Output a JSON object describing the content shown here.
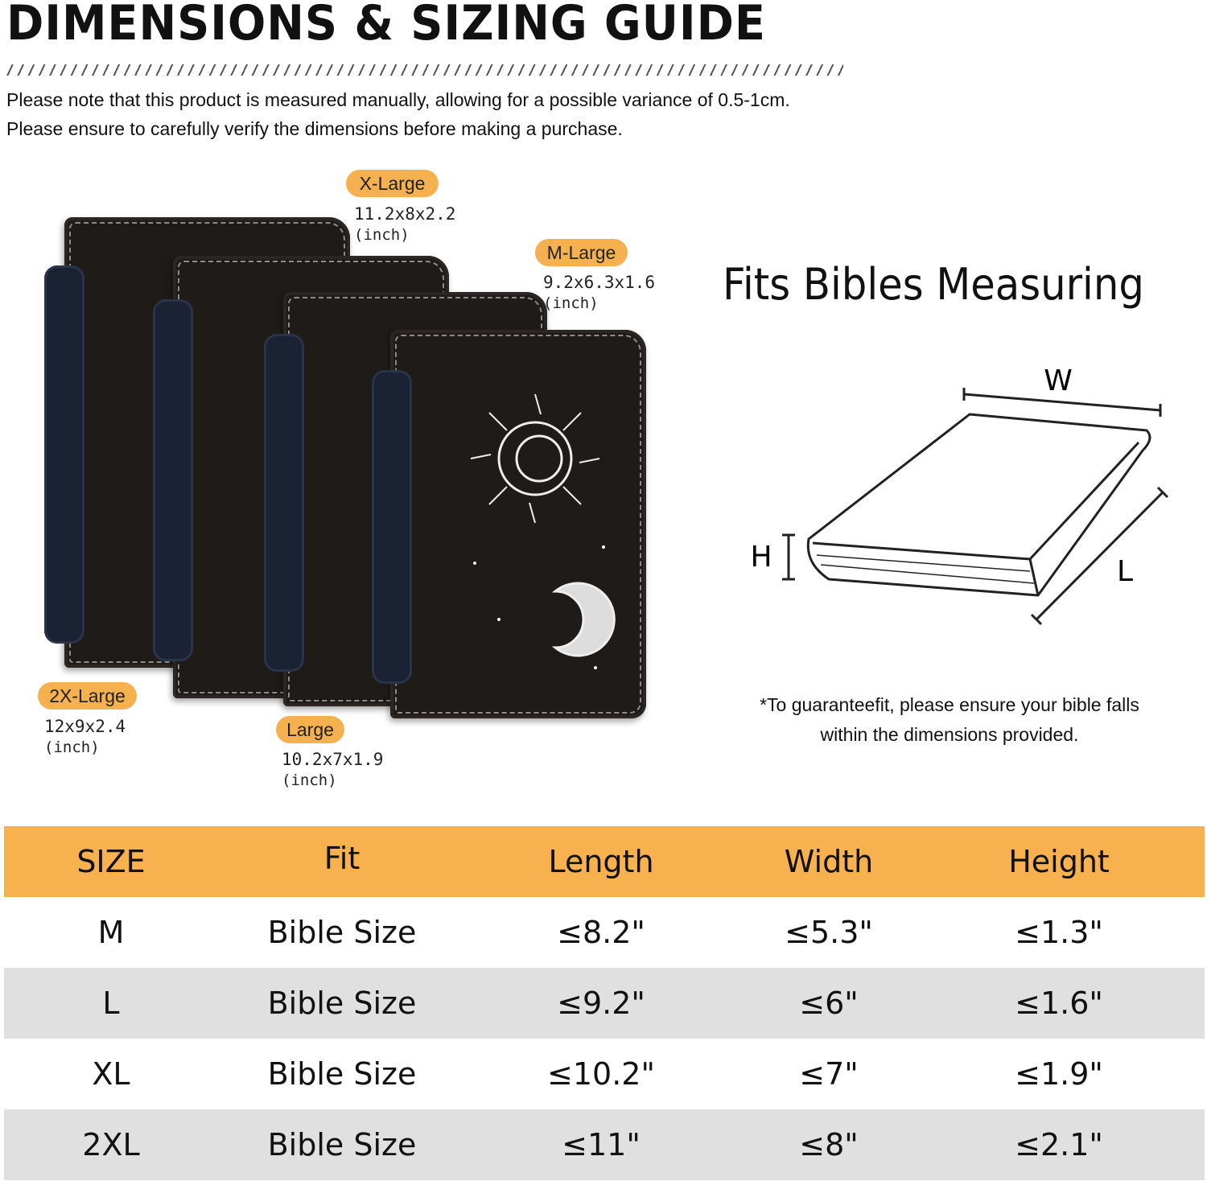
{
  "header": {
    "title": "DIMENSIONS & SIZING GUIDE",
    "notes": [
      "Please note that this product is measured manually, allowing for a possible variance of 0.5-1cm.",
      "Please ensure to carefully verify the dimensions before making a purchase."
    ]
  },
  "sizes": [
    {
      "label": "X-Large",
      "dims": "11.2x8x2.2",
      "unit": "(inch)"
    },
    {
      "label": "M-Large",
      "dims": "9.2x6.3x1.6",
      "unit": "(inch)"
    },
    {
      "label": "2X-Large",
      "dims": "12x9x2.4",
      "unit": "(inch)"
    },
    {
      "label": "Large",
      "dims": "10.2x7x1.9",
      "unit": "(inch)"
    }
  ],
  "measure": {
    "title": "Fits Bibles Measuring",
    "w": "W",
    "h": "H",
    "l": "L",
    "footnote": [
      "*To guaranteefit, please ensure your bible falls",
      "within the dimensions provided."
    ]
  },
  "table": {
    "headers": [
      "SIZE",
      "Fit",
      "Length",
      "Width",
      "Height"
    ],
    "rows": [
      [
        "M",
        "Bible Size",
        "≤8.2\"",
        "≤5.3\"",
        "≤1.3\""
      ],
      [
        "L",
        "Bible Size",
        "≤9.2\"",
        "≤6\"",
        "≤1.6\""
      ],
      [
        "XL",
        "Bible Size",
        "≤10.2\"",
        "≤7\"",
        "≤1.9\""
      ],
      [
        "2XL",
        "Bible Size",
        "≤11\"",
        "≤8\"",
        "≤2.1\""
      ]
    ]
  },
  "colors": {
    "accent": "#f7b24f",
    "row_alt": "#e0e0e0",
    "cover": "#1f1b19"
  }
}
